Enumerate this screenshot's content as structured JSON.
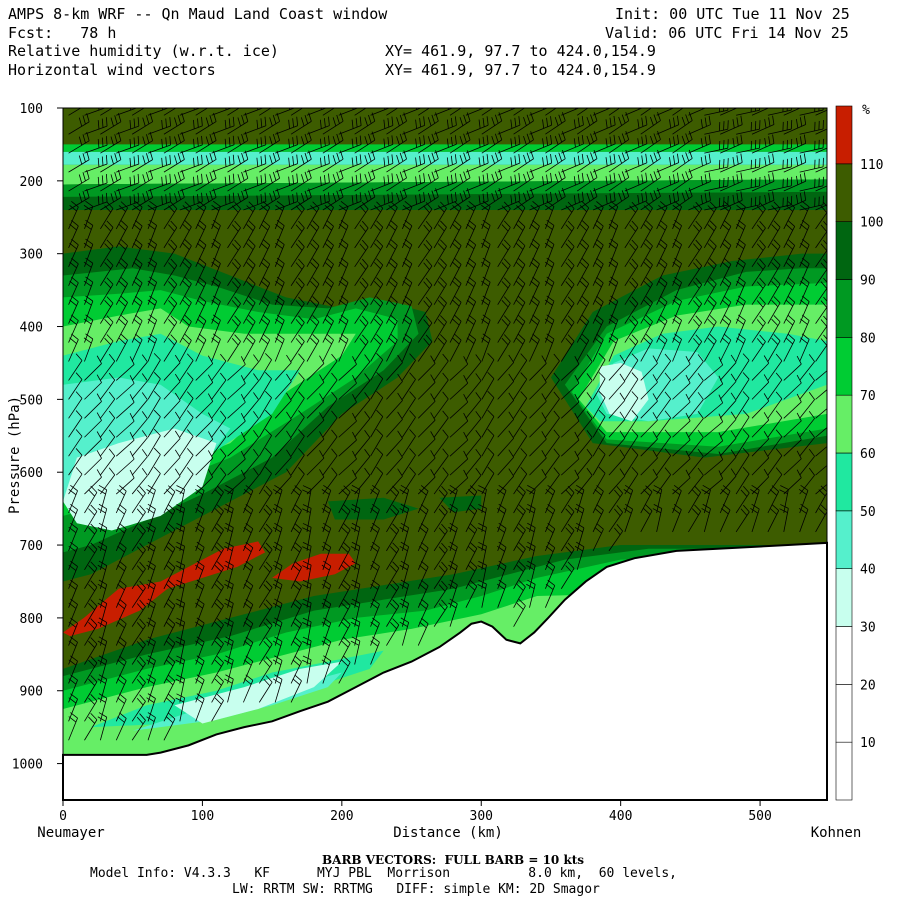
{
  "header": {
    "title": "AMPS 8-km WRF -- Qn Maud Land Coast window",
    "forecast": "Fcst:   78 h",
    "field1": "Relative humidity (w.r.t. ice)",
    "field2": "Horizontal wind vectors",
    "init": "Init: 00 UTC Tue 11 Nov 25",
    "valid": "Valid: 06 UTC Fri 14 Nov 25",
    "xy1": "XY= 461.9, 97.7 to 424.0,154.9",
    "xy2": "XY= 461.9, 97.7 to 424.0,154.9"
  },
  "footer": {
    "barb": "BARB VECTORS:  FULL BARB = 10 kts",
    "model1": "Model Info: V4.3.3   KF      MYJ PBL  Morrison          8.0 km,  60 levels,",
    "model2": "LW: RRTM SW: RRTMG   DIFF: simple KM: 2D Smagor"
  },
  "chart_data": {
    "type": "heatmap",
    "title": "AMPS 8-km WRF -- Qn Maud Land Coast window",
    "xlabel": "Distance (km)",
    "ylabel": "Pressure (hPa)",
    "x_start_label": "Neumayer",
    "x_end_label": "Kohnen",
    "xlim": [
      0,
      548
    ],
    "ylim": [
      1050,
      100
    ],
    "x_ticks": [
      0,
      100,
      200,
      300,
      400,
      500
    ],
    "y_ticks": [
      100,
      200,
      300,
      400,
      500,
      600,
      700,
      800,
      900,
      1000
    ],
    "colorbar": {
      "unit": "%",
      "levels": [
        10,
        20,
        30,
        40,
        50,
        60,
        70,
        80,
        90,
        100,
        110
      ],
      "colors": [
        "#ffffff",
        "#ffffff",
        "#ffffff",
        "#c8ffee",
        "#55f0cc",
        "#20e8a0",
        "#66ee66",
        "#00cc33",
        "#009922",
        "#006611",
        "#3d5c00",
        "#c81e00"
      ]
    },
    "terrain_pressure": [
      [
        0,
        988
      ],
      [
        30,
        988
      ],
      [
        50,
        988
      ],
      [
        60,
        988
      ],
      [
        70,
        985
      ],
      [
        90,
        975
      ],
      [
        110,
        960
      ],
      [
        130,
        950
      ],
      [
        150,
        942
      ],
      [
        170,
        928
      ],
      [
        190,
        915
      ],
      [
        210,
        895
      ],
      [
        230,
        875
      ],
      [
        250,
        860
      ],
      [
        270,
        840
      ],
      [
        285,
        820
      ],
      [
        293,
        808
      ],
      [
        300,
        805
      ],
      [
        308,
        812
      ],
      [
        318,
        830
      ],
      [
        328,
        835
      ],
      [
        338,
        820
      ],
      [
        348,
        800
      ],
      [
        360,
        775
      ],
      [
        375,
        750
      ],
      [
        390,
        730
      ],
      [
        410,
        718
      ],
      [
        440,
        708
      ],
      [
        480,
        704
      ],
      [
        520,
        700
      ],
      [
        548,
        697
      ]
    ],
    "series": [
      {
        "name": "110",
        "regions": [
          [
            [
              0,
              820
            ],
            [
              15,
              800
            ],
            [
              40,
              760
            ],
            [
              70,
              750
            ],
            [
              95,
              725
            ],
            [
              115,
              705
            ],
            [
              140,
              695
            ],
            [
              145,
              710
            ],
            [
              125,
              730
            ],
            [
              100,
              745
            ],
            [
              75,
              760
            ],
            [
              55,
              790
            ],
            [
              25,
              815
            ],
            [
              5,
              825
            ]
          ],
          [
            [
              150,
              745
            ],
            [
              165,
              725
            ],
            [
              185,
              712
            ],
            [
              205,
              712
            ],
            [
              210,
              725
            ],
            [
              195,
              740
            ],
            [
              170,
              750
            ]
          ]
        ]
      },
      {
        "name": "30",
        "regions": [
          [
            [
              0,
              640
            ],
            [
              10,
              580
            ],
            [
              40,
              560
            ],
            [
              80,
              540
            ],
            [
              110,
              560
            ],
            [
              100,
              620
            ],
            [
              70,
              660
            ],
            [
              35,
              680
            ],
            [
              10,
              670
            ]
          ],
          [
            [
              80,
              920
            ],
            [
              130,
              895
            ],
            [
              170,
              870
            ],
            [
              200,
              860
            ],
            [
              180,
              895
            ],
            [
              140,
              925
            ],
            [
              100,
              945
            ]
          ],
          [
            [
              385,
              455
            ],
            [
              400,
              450
            ],
            [
              415,
              462
            ],
            [
              420,
              500
            ],
            [
              408,
              530
            ],
            [
              392,
              520
            ],
            [
              385,
              490
            ]
          ]
        ]
      }
    ]
  }
}
